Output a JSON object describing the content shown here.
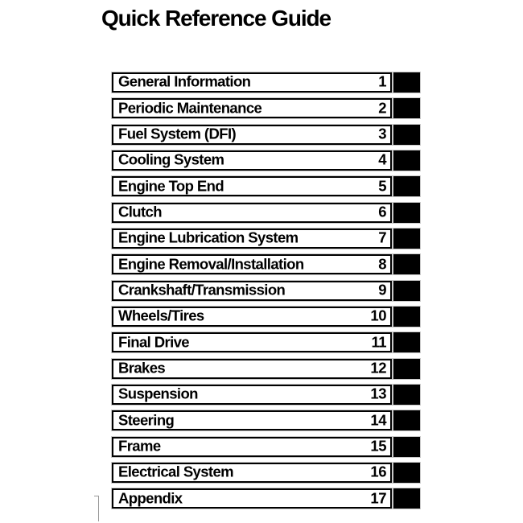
{
  "page": {
    "title": "Quick Reference Guide"
  },
  "toc": {
    "items": [
      {
        "label": "General Information",
        "number": "1"
      },
      {
        "label": "Periodic Maintenance",
        "number": "2"
      },
      {
        "label": "Fuel System (DFI)",
        "number": "3"
      },
      {
        "label": "Cooling System",
        "number": "4"
      },
      {
        "label": "Engine Top End",
        "number": "5"
      },
      {
        "label": "Clutch",
        "number": "6"
      },
      {
        "label": "Engine Lubrication System",
        "number": "7"
      },
      {
        "label": "Engine Removal/Installation",
        "number": "8"
      },
      {
        "label": "Crankshaft/Transmission",
        "number": "9"
      },
      {
        "label": "Wheels/Tires",
        "number": "10"
      },
      {
        "label": "Final Drive",
        "number": "11"
      },
      {
        "label": "Brakes",
        "number": "12"
      },
      {
        "label": "Suspension",
        "number": "13"
      },
      {
        "label": "Steering",
        "number": "14"
      },
      {
        "label": "Frame",
        "number": "15"
      },
      {
        "label": "Electrical System",
        "number": "16"
      },
      {
        "label": "Appendix",
        "number": "17"
      }
    ]
  },
  "colors": {
    "ink": "#000000",
    "paper": "#ffffff",
    "scan_edge": "#c9c9c9",
    "corner_mark": "#999999"
  }
}
